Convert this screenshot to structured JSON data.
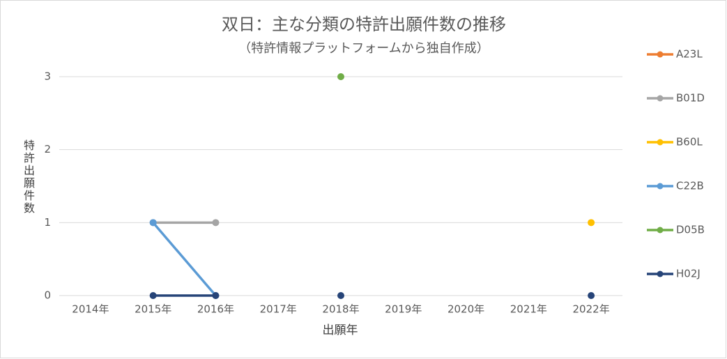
{
  "chart_data": {
    "type": "line",
    "title": "双日：主な分類の特許出願件数の推移",
    "subtitle": "（特許情報プラットフォームから独自作成）",
    "x_label": "出願年",
    "y_label": "特許出願件数",
    "categories": [
      "2014年",
      "2015年",
      "2016年",
      "2017年",
      "2018年",
      "2019年",
      "2020年",
      "2021年",
      "2022年"
    ],
    "series": [
      {
        "name": "A23L",
        "color": "#ed7d31",
        "values": [
          null,
          null,
          null,
          null,
          null,
          null,
          null,
          null,
          null
        ]
      },
      {
        "name": "B01D",
        "color": "#a5a5a5",
        "values": [
          null,
          1,
          1,
          null,
          null,
          null,
          null,
          null,
          null
        ]
      },
      {
        "name": "B60L",
        "color": "#ffc000",
        "values": [
          null,
          null,
          null,
          null,
          null,
          null,
          null,
          null,
          1
        ]
      },
      {
        "name": "C22B",
        "color": "#5b9bd5",
        "values": [
          null,
          1,
          0,
          null,
          null,
          null,
          null,
          null,
          null
        ]
      },
      {
        "name": "D05B",
        "color": "#70ad47",
        "values": [
          null,
          null,
          null,
          null,
          3,
          null,
          null,
          null,
          null
        ]
      },
      {
        "name": "H02J",
        "color": "#264478",
        "values": [
          null,
          0,
          0,
          null,
          0,
          null,
          null,
          null,
          0
        ]
      }
    ],
    "ylim": [
      0,
      3
    ],
    "yticks": [
      0,
      1,
      2,
      3
    ],
    "grid": true,
    "legend": "right"
  }
}
